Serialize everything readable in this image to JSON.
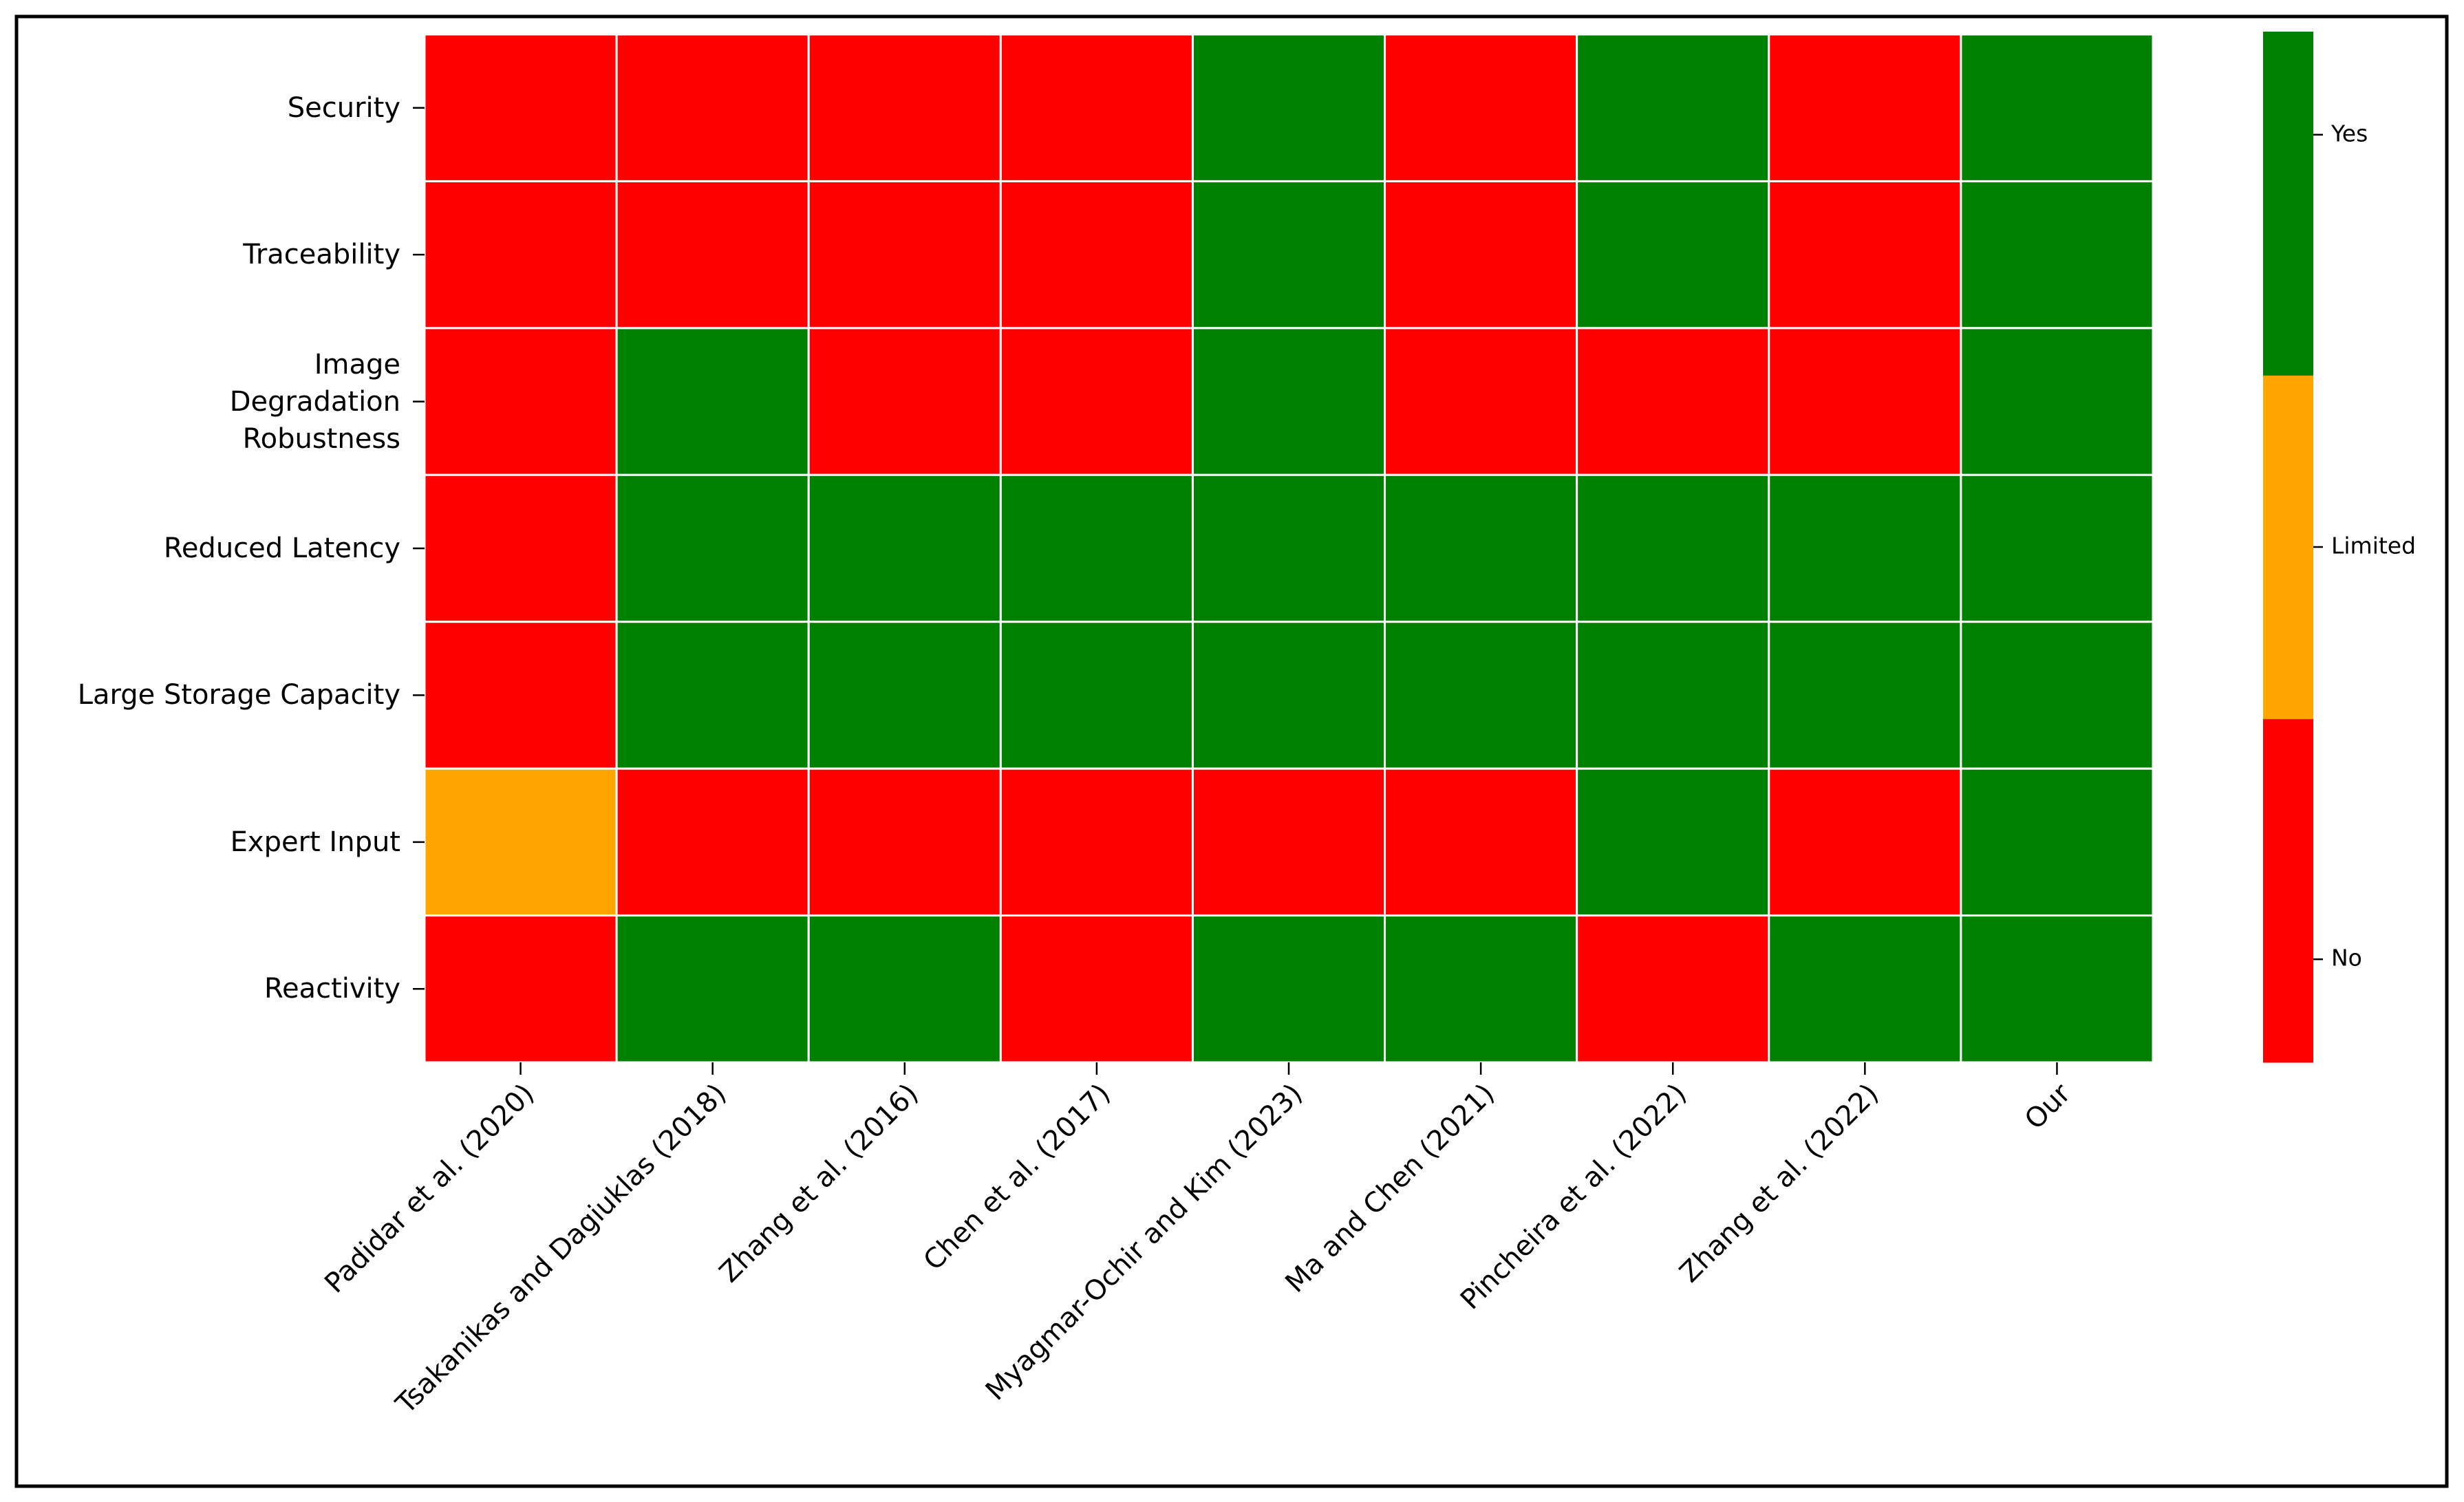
{
  "chart_data": {
    "type": "heatmap",
    "x_categories": [
      "Padidar et al. (2020)",
      "Tsakanikas and Dagiuklas (2018)",
      "Zhang et al. (2016)",
      "Chen et al. (2017)",
      "Myagmar-Ochir and Kim (2023)",
      "Ma and Chen (2021)",
      "Pincheira et al. (2022)",
      "Zhang et al. (2022)",
      "Our"
    ],
    "y_categories": [
      "Security",
      "Traceability",
      "Image\nDegradation\nRobustness",
      "Reduced Latency",
      "Large Storage Capacity",
      "Expert Input",
      "Reactivity"
    ],
    "z": [
      [
        0,
        0,
        0,
        0,
        2,
        0,
        2,
        0,
        2
      ],
      [
        0,
        0,
        0,
        0,
        2,
        0,
        2,
        0,
        2
      ],
      [
        0,
        2,
        0,
        0,
        2,
        0,
        0,
        0,
        2
      ],
      [
        0,
        2,
        2,
        2,
        2,
        2,
        2,
        2,
        2
      ],
      [
        0,
        2,
        2,
        2,
        2,
        2,
        2,
        2,
        2
      ],
      [
        1,
        0,
        0,
        0,
        0,
        0,
        2,
        0,
        2
      ],
      [
        0,
        2,
        2,
        0,
        2,
        2,
        0,
        2,
        2
      ]
    ],
    "colors": [
      "#ff0000",
      "#ffa500",
      "#008000"
    ],
    "colorbar_lim": [
      -0.25,
      2.25
    ],
    "colorbar_ticks": [
      {
        "value": 0,
        "label": "No"
      },
      {
        "value": 1,
        "label": "Limited"
      },
      {
        "value": 2,
        "label": "Yes"
      }
    ]
  }
}
